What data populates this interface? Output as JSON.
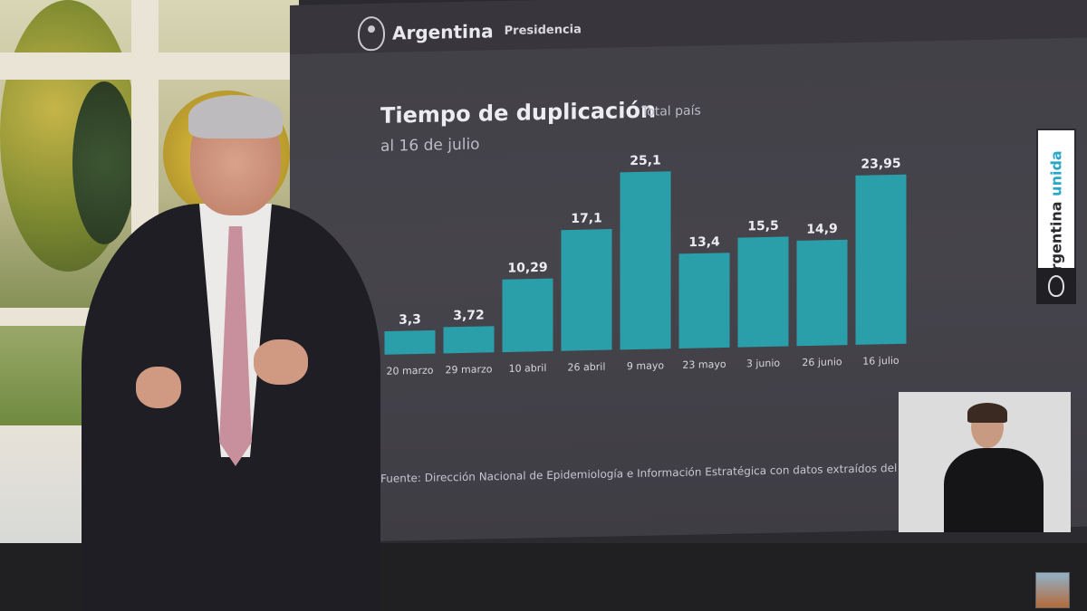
{
  "header": {
    "brand": "Argentina",
    "brand_sub": "Presidencia"
  },
  "chart_data": {
    "type": "bar",
    "title": "Tiempo de duplicación",
    "subtitle": "Total país",
    "date_label": "al 16 de julio",
    "categories": [
      "20 marzo",
      "29 marzo",
      "10 abril",
      "26 abril",
      "9 mayo",
      "23 mayo",
      "3 junio",
      "26 junio",
      "16 julio"
    ],
    "values": [
      3.3,
      3.72,
      10.29,
      17.1,
      25.1,
      13.4,
      15.5,
      14.9,
      23.95
    ],
    "value_labels": [
      "3,3",
      "3,72",
      "10,29",
      "17,1",
      "25,1",
      "13,4",
      "15,5",
      "14,9",
      "23,95"
    ],
    "ylim": [
      0,
      25.1
    ],
    "grid": false,
    "legend": "none",
    "bar_color": "#2a9faa",
    "source": "Fuente: Dirección Nacional de Epidemiología e Información Estratégica con datos extraídos del SN"
  },
  "side_tab": {
    "word1": "Argentina",
    "word2": "unida"
  },
  "colors": {
    "accent": "#2aa6c9",
    "screen_bg": "#444249"
  }
}
